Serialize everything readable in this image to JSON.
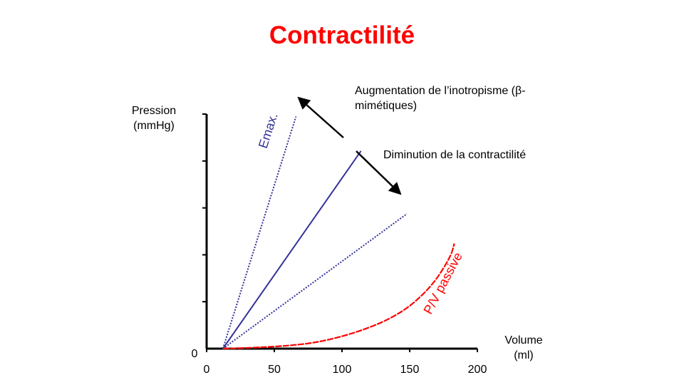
{
  "title": "Contractilité",
  "colors": {
    "title": "#ff0000",
    "lines": "#333399",
    "passive": "#ff0000",
    "axis": "#000000"
  },
  "chart_data": {
    "type": "line",
    "ylabel": "Pression\n(mmHg)",
    "xlabel": "Volume\n(ml)",
    "x_ticks": [
      "0",
      "50",
      "100",
      "150",
      "200"
    ],
    "y_ticks": [
      "0"
    ],
    "xlim": [
      0,
      200
    ],
    "y_minor_tick_count": 5,
    "series": [
      {
        "name": "Emax.",
        "style": "dotted",
        "points": [
          [
            12,
            0
          ],
          [
            66,
            7.4
          ]
        ]
      },
      {
        "style": "solid",
        "points": [
          [
            12,
            0
          ],
          [
            114,
            6.3
          ]
        ]
      },
      {
        "style": "dotted",
        "points": [
          [
            12,
            0
          ],
          [
            148,
            4.3
          ]
        ]
      },
      {
        "name": "P/V passive",
        "style": "dashed",
        "color": "#ff0000",
        "points": [
          [
            12,
            0
          ],
          [
            60,
            0.05
          ],
          [
            100,
            0.35
          ],
          [
            140,
            1.0
          ],
          [
            165,
            1.9
          ],
          [
            180,
            2.9
          ],
          [
            183,
            3.35
          ]
        ]
      }
    ],
    "annotations": [
      {
        "text": "Augmentation de l’inotropisme (β-mimétiques)"
      },
      {
        "text": "Diminution de la contractilité"
      }
    ]
  }
}
